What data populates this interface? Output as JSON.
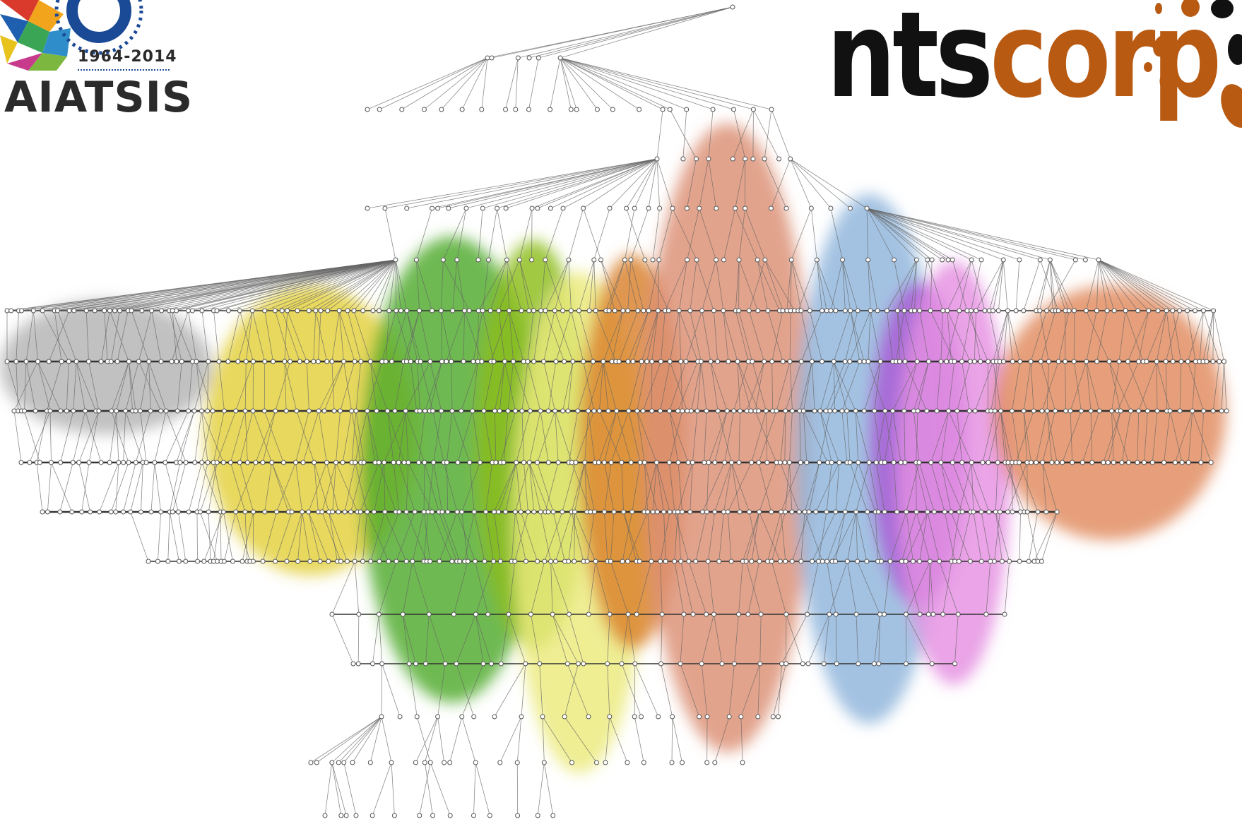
{
  "logos": {
    "aiatsis": {
      "years": "1964-2014",
      "name": "AIATSIS"
    },
    "ntscorp": {
      "part_dark": "nts",
      "part_brand": "corp",
      "brand_color": "#b85a12",
      "dark_color": "#111111"
    }
  },
  "diagram": {
    "type": "genealogy-network",
    "clusters": [
      {
        "name": "gray-cluster",
        "color": "#b3b3b3"
      },
      {
        "name": "yellow-cluster",
        "color": "#e3cf3a"
      },
      {
        "name": "green-cluster",
        "color": "#4eaa2a"
      },
      {
        "name": "lime-cluster",
        "color": "#8cbd1c"
      },
      {
        "name": "pale-yellow-cluster",
        "color": "#ecea7c"
      },
      {
        "name": "orange-cluster",
        "color": "#d9802a"
      },
      {
        "name": "salmon-cluster",
        "color": "#dc8f74"
      },
      {
        "name": "blue-cluster",
        "color": "#8fb4dc"
      },
      {
        "name": "violet-cluster",
        "color": "#a95ad6"
      },
      {
        "name": "pink-cluster",
        "color": "#e590e2"
      },
      {
        "name": "coral-cluster",
        "color": "#e08a5d"
      }
    ],
    "line_color": "#666666"
  }
}
